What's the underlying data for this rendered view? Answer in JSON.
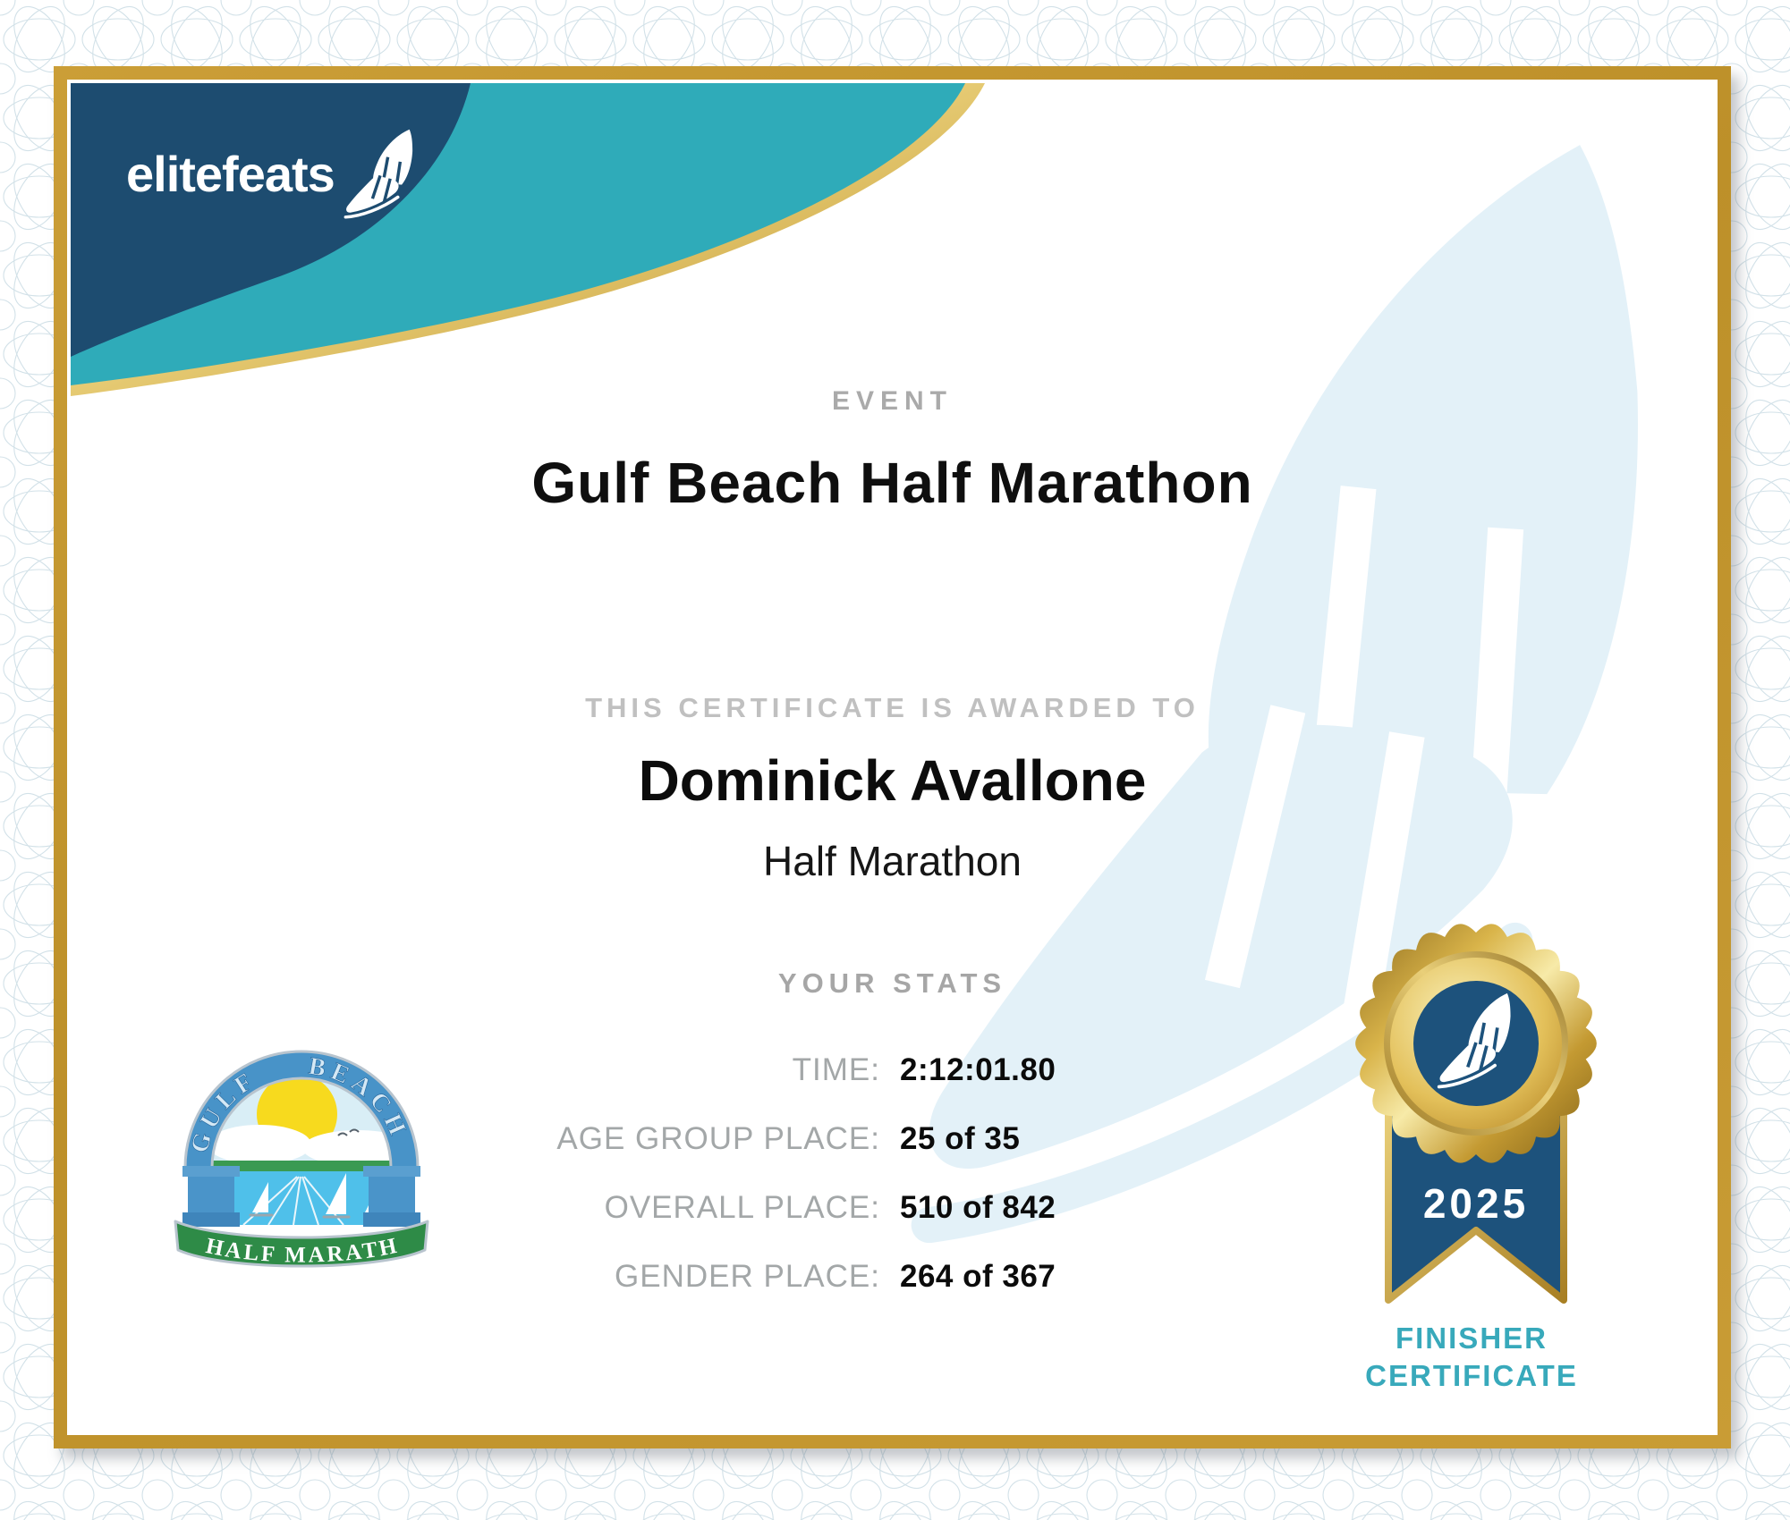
{
  "brand": {
    "name": "elitefeats"
  },
  "event": {
    "label": "EVENT",
    "title": "Gulf Beach Half Marathon"
  },
  "award": {
    "label": "THIS CERTIFICATE IS AWARDED TO",
    "recipient": "Dominick Avallone",
    "division": "Half Marathon"
  },
  "stats": {
    "heading": "YOUR STATS",
    "rows": [
      {
        "label": "TIME:",
        "value": "2:12:01.80"
      },
      {
        "label": "AGE GROUP PLACE:",
        "value": "25 of 35"
      },
      {
        "label": "OVERALL PLACE:",
        "value": "510 of 842"
      },
      {
        "label": "GENDER PLACE:",
        "value": "264 of 367"
      }
    ]
  },
  "race_logo": {
    "arch_left": "GULF",
    "arch_right": "BEACH",
    "banner": "HALF MARATHON"
  },
  "medal": {
    "year": "2025",
    "caption_top": "FINISHER",
    "caption_bottom": "CERTIFICATE"
  },
  "colors": {
    "navy": "#1d4c70",
    "teal": "#2fabb9",
    "frame_gold": "#c0932c",
    "medal_gold": "#d9b44a",
    "ribbon_navy": "#1d527c",
    "finisher_teal": "#38a9bb",
    "label_gray": "#a3a7a8",
    "watermark_blue": "#e3f1f8",
    "guilloche_blue": "#d2e1e8",
    "sun_yellow": "#f7da1e",
    "sea_blue": "#4fc0ea",
    "banner_green": "#2e8b47",
    "arch_blue": "#4893c8"
  }
}
